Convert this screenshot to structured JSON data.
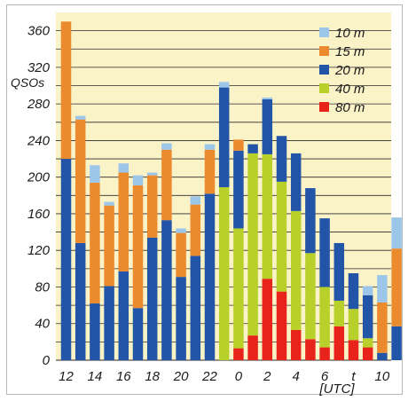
{
  "chart_data": {
    "type": "bar",
    "stacked": true,
    "ylabel": "QSOs",
    "xlabel": "t [UTC]",
    "xlabel_parts": [
      "t",
      "[UTC]"
    ],
    "ylim": [
      0,
      380
    ],
    "y_ticks": [
      0,
      40,
      80,
      120,
      160,
      200,
      240,
      280,
      320,
      360
    ],
    "x_tick_labels": [
      "12",
      "14",
      "16",
      "18",
      "20",
      "22",
      "0",
      "2",
      "4",
      "6",
      "10"
    ],
    "x_tick_hours": [
      12,
      14,
      16,
      18,
      20,
      22,
      24,
      26,
      28,
      30,
      34
    ],
    "hours": [
      12,
      13,
      14,
      15,
      16,
      17,
      18,
      19,
      20,
      21,
      22,
      23,
      24,
      25,
      26,
      27,
      28,
      29,
      30,
      31,
      32,
      33,
      34,
      35
    ],
    "legend_position": "top-right",
    "grid": "horizontal",
    "background": "#fbf3c8",
    "series": [
      {
        "name": "80 m",
        "color": "#e8231c",
        "values": [
          0,
          0,
          0,
          0,
          0,
          0,
          0,
          0,
          0,
          0,
          0,
          0,
          13,
          27,
          89,
          75,
          33,
          23,
          14,
          37,
          22,
          14,
          0,
          0
        ]
      },
      {
        "name": "40 m",
        "color": "#b8d12a",
        "values": [
          0,
          0,
          0,
          0,
          0,
          0,
          0,
          0,
          0,
          0,
          0,
          189,
          131,
          199,
          136,
          120,
          130,
          94,
          66,
          28,
          34,
          10,
          0,
          0
        ]
      },
      {
        "name": "20 m",
        "color": "#2255a8",
        "values": [
          220,
          128,
          62,
          81,
          97,
          57,
          134,
          153,
          91,
          114,
          182,
          109,
          85,
          10,
          60,
          50,
          63,
          71,
          75,
          63,
          39,
          47,
          8,
          37
        ]
      },
      {
        "name": "15 m",
        "color": "#ec8a2e",
        "values": [
          150,
          135,
          132,
          88,
          108,
          134,
          68,
          77,
          48,
          56,
          48,
          0,
          12,
          0,
          0,
          0,
          0,
          0,
          0,
          0,
          0,
          0,
          55,
          85
        ]
      },
      {
        "name": "10 m",
        "color": "#9cc7e9",
        "values": [
          0,
          4,
          19,
          4,
          10,
          11,
          3,
          7,
          5,
          9,
          6,
          6,
          0,
          0,
          2,
          0,
          0,
          0,
          0,
          0,
          0,
          10,
          30,
          34
        ]
      }
    ]
  }
}
